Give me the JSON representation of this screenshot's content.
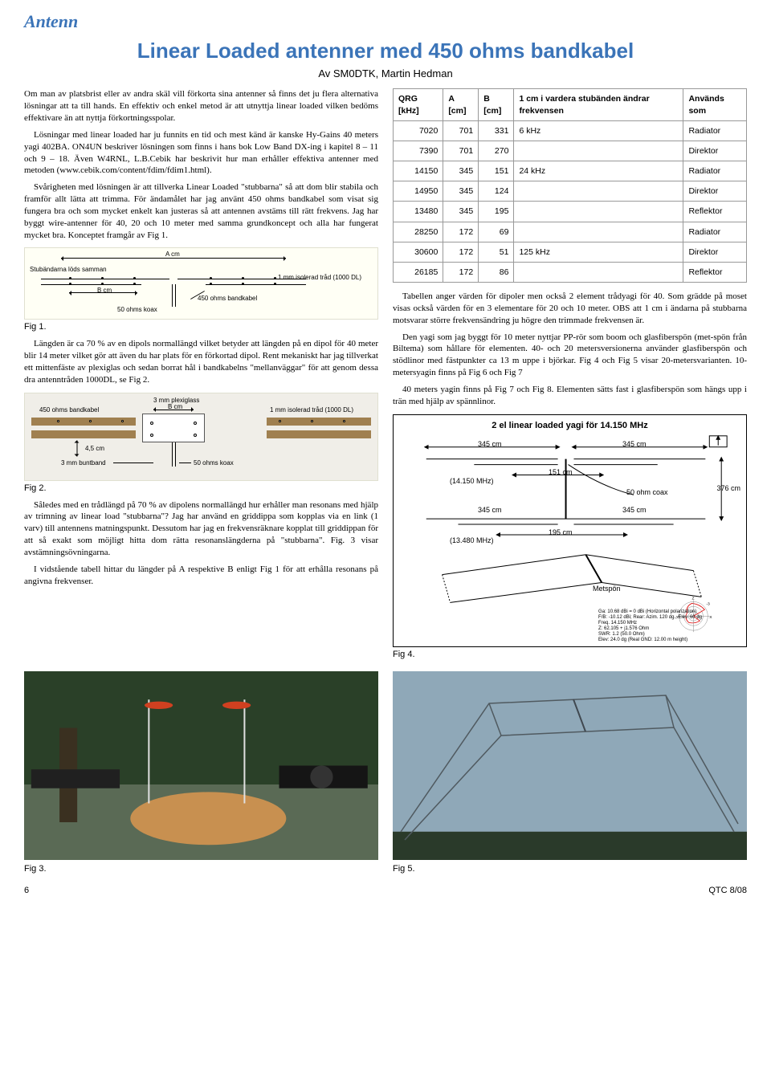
{
  "section": "Antenn",
  "title": "Linear Loaded antenner med 450 ohms bandkabel",
  "byline": "Av SM0DTK, Martin Hedman",
  "left": {
    "p1": "Om man av platsbrist eller av andra skäl vill förkorta sina antenner så finns det ju flera alternativa lösningar att ta till hands. En effektiv och enkel metod är att utnyttja linear loaded vilken bedöms effektivare än att nyttja förkortningsspolar.",
    "p2": "Lösningar med linear loaded har ju funnits en tid och mest känd är kanske Hy-Gains 40 meters yagi 402BA. ON4UN beskriver lösningen som finns i hans bok Low Band DX-ing i kapitel 8 – 11 och 9 – 18. Även W4RNL, L.B.Cebik har beskrivit hur man erhåller effektiva antenner med metoden (www.cebik.com/content/fdim/fdim1.html).",
    "p3": "Svårigheten med lösningen är att tillverka Linear Loaded \"stubbarna\" så att dom blir stabila och framför allt lätta att trimma. För ändamålet har jag använt 450 ohms bandkabel som visat sig fungera bra och som mycket enkelt kan justeras så att antennen avstäms till rätt frekvens. Jag har byggt wire-antenner för 40, 20 och 10 meter med samma grundkoncept och alla har fungerat mycket bra. Konceptet framgår av Fig 1.",
    "fig1": {
      "label": "Fig 1.",
      "labels": {
        "acm": "A cm",
        "bcm": "B cm",
        "stub": "Stubändarna löds samman",
        "iso": "1 mm isolerad tråd (1000 DL)",
        "koax": "50 ohms koax",
        "band": "450 ohms bandkabel"
      }
    },
    "p4": "Längden är ca 70 % av en dipols normallängd vilket betyder att längden på en dipol för 40 meter blir 14 meter vilket gör att även du har plats för en förkortad dipol. Rent mekaniskt har jag tillverkat ett mittenfäste av plexiglas och sedan borrat hål i bandkabelns \"mellanväggar\" för att genom dessa dra antenntråden 1000DL, se Fig 2.",
    "fig2": {
      "label": "Fig 2.",
      "labels": {
        "band": "450 ohms bandkabel",
        "plexi": "3 mm plexiglass",
        "bcm": "B cm",
        "iso": "1 mm isolerad tråd (1000 DL)",
        "d45": "4,5 cm",
        "bunt": "3 mm buntband",
        "koax": "50 ohms koax"
      }
    },
    "p5": "Således med en trådlängd på 70 % av dipolens normallängd hur erhåller man resonans med hjälp av trimning av linear load \"stubbarna\"? Jag har använd en griddippa som kopplas via en link (1 varv) till antennens matningspunkt. Dessutom har jag en frekvensräknare kopplat till griddippan för att så exakt som möjligt hitta dom rätta resonanslängderna på \"stubbarna\". Fig. 3 visar avstämningsövningarna.",
    "p6": "I vidstående tabell hittar du längder på A respektive B enligt Fig 1 för att erhålla resonans på angivna frekvenser.",
    "fig3": {
      "label": "Fig 3."
    }
  },
  "right": {
    "table": {
      "headers": [
        "QRG [kHz]",
        "A [cm]",
        "B [cm]",
        "1 cm i vardera stubänden ändrar frekvensen",
        "Används som"
      ],
      "rows": [
        [
          "7020",
          "701",
          "331",
          "6 kHz",
          "Radiator"
        ],
        [
          "7390",
          "701",
          "270",
          "",
          "Direktor"
        ],
        [
          "14150",
          "345",
          "151",
          "24 kHz",
          "Radiator"
        ],
        [
          "14950",
          "345",
          "124",
          "",
          "Direktor"
        ],
        [
          "13480",
          "345",
          "195",
          "",
          "Reflektor"
        ],
        [
          "28250",
          "172",
          "69",
          "",
          "Radiator"
        ],
        [
          "30600",
          "172",
          "51",
          "125 kHz",
          "Direktor"
        ],
        [
          "26185",
          "172",
          "86",
          "",
          "Reflektor"
        ]
      ]
    },
    "p1": "Tabellen anger värden för dipoler men också 2 element trådyagi för 40. Som grädde på moset visas också värden för en 3 elementare för 20 och 10 meter. OBS att 1 cm i ändarna på stubbarna motsvarar större frekvensändring ju högre den trimmade frekvensen är.",
    "p2": "Den yagi som jag byggt för 10 meter nyttjar PP-rör som boom och glasfiberspön (met-spön från Biltema) som hållare för elementen. 40- och 20 metersversionerna använder glasfiberspön och stödlinor med fästpunkter ca 13 m uppe i björkar. Fig 4 och Fig 5 visar 20-metersvarianten. 10-metersyagin finns på Fig 6 och Fig 7",
    "p3": "40 meters yagin finns på Fig 7 och Fig 8. Elementen sätts fast i glasfiberspön som hängs upp i trän med hjälp av spännlinor.",
    "fig4": {
      "label": "Fig 4.",
      "title": "2 el linear loaded yagi för 14.150 MHz",
      "dims": {
        "el": "345 cm",
        "f1": "(14.150 MHz)",
        "stub1": "151 cm",
        "f2": "(13.480 MHz)",
        "stub2": "195 cm",
        "boom": "376 cm",
        "coax": "50 ohm coax",
        "spon": "Metspön"
      },
      "gaininfo": [
        "Ga: 10.68 dBi = 0 dBi (Horizontal polarization)",
        "F/B: -10.12 dBi; Rear: Azim. 120 dg., Elev. 60 dg",
        "Freq. 14.150 MHz",
        "Z: 62.105 + j1.576 Ohm",
        "SWR: 1.2 (50.0 Ohm)",
        "Elev: 24.0 dg (Real GND: 12.00 m height)"
      ]
    },
    "fig5": {
      "label": "Fig 5."
    }
  },
  "footer": {
    "page": "6",
    "issue": "QTC 8/08"
  },
  "colors": {
    "accent": "#3b74b8",
    "diagram_bg": "#fffff5",
    "fig2_bg": "#f0eee8",
    "fig2_brown": "#a08050",
    "photo_sky": "#9fb4c4",
    "photo_grass": "#3a5030"
  }
}
